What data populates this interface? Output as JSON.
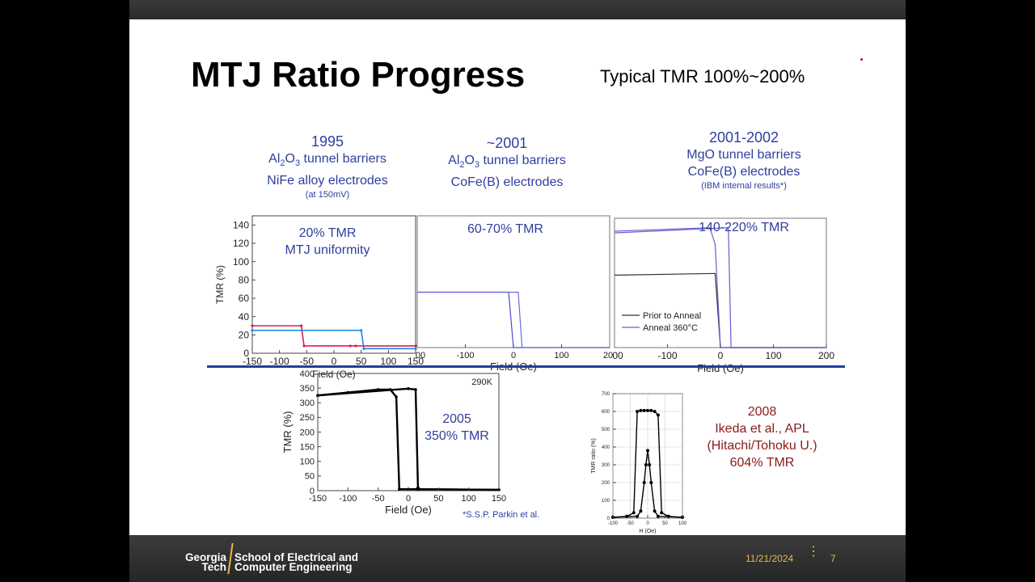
{
  "slide": {
    "title": "MTJ Ratio Progress",
    "subtitle": "Typical TMR 100%~200%",
    "page_number": "7",
    "date": "11/21/2024"
  },
  "footer": {
    "logo_line1": "Georgia",
    "logo_line2": "Tech",
    "school_line1": "School of Electrical and",
    "school_line2": "Computer Engineering"
  },
  "panels": {
    "p1995": {
      "year": "1995",
      "line1_pre": "Al",
      "line1_sub1": "2",
      "line1_mid": "O",
      "line1_sub2": "3",
      "line1_post": " tunnel barriers",
      "line2": "NiFe alloy electrodes",
      "note": "(at 150mV)",
      "inset": "20% TMR",
      "inset2": "MTJ uniformity"
    },
    "p2001": {
      "year": "~2001",
      "line1_pre": "Al",
      "line1_sub1": "2",
      "line1_mid": "O",
      "line1_sub2": "3",
      "line1_post": " tunnel barriers",
      "line2": "CoFe(B) electrodes",
      "inset": "60-70% TMR"
    },
    "p2002": {
      "year": "2001-2002",
      "line1": "MgO tunnel barriers",
      "line2": "CoFe(B) electrodes",
      "note": "(IBM internal results*)",
      "inset": "140-220% TMR",
      "legend": [
        "Prior to Anneal",
        "Anneal 360°C"
      ]
    },
    "p2005": {
      "label1": "2005",
      "label2": "350% TMR",
      "temp": "290K",
      "credit": "*S.S.P. Parkin et al."
    },
    "p2008": {
      "line1": "2008",
      "line2": "Ikeda et al., APL",
      "line3": "(Hitachi/Tohoku U.)",
      "line4": "604%  TMR"
    }
  },
  "chart_data": [
    {
      "type": "line",
      "panel": "1995",
      "xlabel": "Field (Oe)",
      "ylabel": "TMR (%)",
      "xlim": [
        -150,
        150
      ],
      "ylim": [
        0,
        150
      ],
      "x_ticks": [
        -150,
        -100,
        -50,
        0,
        50,
        100,
        150
      ],
      "y_ticks": [
        0,
        20,
        40,
        60,
        80,
        100,
        120,
        140
      ],
      "series": [
        {
          "x": [
            -150,
            -60,
            -55,
            30,
            40,
            150
          ],
          "y": [
            30,
            30,
            8,
            8,
            8,
            8
          ]
        },
        {
          "x": [
            -150,
            50,
            55,
            150
          ],
          "y": [
            25,
            25,
            5,
            5
          ]
        }
      ]
    },
    {
      "type": "line",
      "panel": "2001",
      "xlabel": "Field (Oe)",
      "x_ticks": [
        -100,
        0,
        100
      ],
      "x_tick_edge_labels": [
        "00",
        "20"
      ],
      "xlim": [
        -200,
        200
      ],
      "ylim": [
        0,
        150
      ],
      "series": [
        {
          "x": [
            -200,
            -10,
            0,
            10,
            200
          ],
          "y": [
            63,
            63,
            0,
            0,
            0
          ]
        },
        {
          "x": [
            -200,
            10,
            18,
            200
          ],
          "y": [
            63,
            63,
            0,
            0
          ]
        }
      ]
    },
    {
      "type": "line",
      "panel": "2001-2002",
      "xlabel": "Field (Oe)",
      "x_ticks": [
        -100,
        0,
        100,
        200
      ],
      "x_tick_edge_labels": [
        "00"
      ],
      "xlim": [
        -200,
        200
      ],
      "ylim": [
        0,
        150
      ],
      "series": [
        {
          "name": "Prior to Anneal",
          "x": [
            -200,
            -10,
            0,
            200
          ],
          "y": [
            84,
            86,
            0,
            0
          ]
        },
        {
          "name": "Anneal 360°C",
          "x": [
            -200,
            -20,
            -10,
            0,
            200
          ],
          "y": [
            135,
            139,
            120,
            0,
            0
          ]
        },
        {
          "name": "Anneal 360°C",
          "x": [
            -200,
            15,
            20,
            200
          ],
          "y": [
            133,
            139,
            0,
            0
          ]
        }
      ]
    },
    {
      "type": "scatter",
      "panel": "2005",
      "xlabel": "Field (Oe)",
      "ylabel": "TMR (%)",
      "xlim": [
        -150,
        150
      ],
      "ylim": [
        0,
        400
      ],
      "x_ticks": [
        -150,
        -100,
        -50,
        0,
        50,
        100,
        150
      ],
      "y_ticks": [
        0,
        50,
        100,
        150,
        200,
        250,
        300,
        350,
        400
      ],
      "series": [
        {
          "x": [
            -150,
            -100,
            -50,
            -30,
            -20,
            -15,
            0,
            14,
            150
          ],
          "y": [
            325,
            335,
            345,
            345,
            320,
            5,
            5,
            5,
            3
          ]
        },
        {
          "x": [
            -150,
            0,
            12,
            16,
            18,
            150
          ],
          "y": [
            325,
            348,
            345,
            10,
            5,
            3
          ]
        }
      ]
    },
    {
      "type": "scatter",
      "panel": "2008",
      "xlabel": "H (Oe)",
      "ylabel": "TMR ratio (%)",
      "xlim": [
        -100,
        100
      ],
      "ylim": [
        0,
        700
      ],
      "x_ticks": [
        -100,
        -50,
        0,
        50,
        100
      ],
      "y_ticks": [
        0,
        100,
        200,
        300,
        400,
        500,
        600,
        700
      ],
      "series": [
        {
          "x": [
            -100,
            -60,
            -40,
            -30,
            -20,
            -10,
            0,
            10,
            20,
            30,
            40,
            60,
            100
          ],
          "y": [
            5,
            10,
            30,
            600,
            605,
            605,
            605,
            605,
            600,
            580,
            30,
            10,
            5
          ]
        },
        {
          "x": [
            -100,
            -30,
            -20,
            -10,
            -5,
            0,
            5,
            10,
            20,
            30,
            100
          ],
          "y": [
            5,
            10,
            40,
            200,
            300,
            380,
            300,
            200,
            40,
            10,
            5
          ]
        }
      ]
    }
  ]
}
